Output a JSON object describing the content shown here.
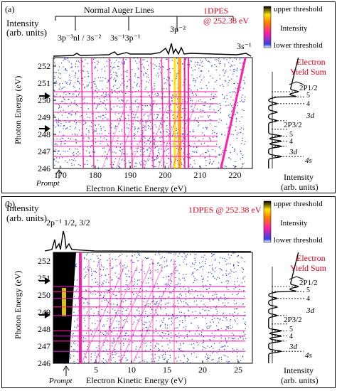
{
  "panel_a": {
    "label": "(a)",
    "intensity_label": [
      "Intensity",
      "(arb. units)"
    ],
    "auger_header": "Normal Auger Lines",
    "peak_labels": {
      "p3nl": "3p⁻³nl / 3s⁻²",
      "s1p1": "3s⁻¹3p⁻¹",
      "p2": "3p⁻²",
      "s1": "3s⁻¹"
    },
    "title": [
      "1DPES",
      "@ 252.38 eV"
    ],
    "legend": {
      "upper": "upper threshold",
      "middle": "Intensity",
      "lower": "lower threshold"
    },
    "ylabel": "Photon Energy (eV)",
    "xlabel": "Electron Kinetic Energy (eV)",
    "prompt": "Prompt",
    "yield_title": [
      "Electron",
      "Yield Sum"
    ],
    "yield_xlabel": [
      "Intensity",
      "(arb. units)"
    ],
    "yield_labels": {
      "p12": "2P1/2",
      "n5a": "5",
      "n4a": "4",
      "d3a": "3d",
      "p32": "2P3/2",
      "n5b": "5",
      "n4b": "4",
      "d3b": "3d",
      "s4": "4s"
    }
  },
  "panel_b": {
    "label": "(b)",
    "intensity_label": [
      "Intensity",
      "(arb. units)"
    ],
    "peak_label": "2p⁻¹ 1/2, 3/2",
    "title": "1DPES @ 252.38 eV",
    "legend": {
      "upper": "upper threshold",
      "middle": "Intensity",
      "lower": "lower threshold"
    },
    "ylabel": "Photon Energy (eV)",
    "xlabel": "Electron Kinetic Energy (eV)",
    "prompt": "Prompt",
    "yield_title": [
      "Electron",
      "Yield Sum"
    ],
    "yield_xlabel": [
      "Intensity",
      "(arb. units)"
    ],
    "yield_labels": {
      "p12": "2P1/2",
      "n5a": "5",
      "n4a": "4",
      "d3a": "3d",
      "p32": "2P3/2",
      "n5b": "5",
      "n4b": "4",
      "d3b": "3d",
      "s4": "4s"
    }
  },
  "chart_data": [
    {
      "type": "heatmap",
      "xlabel": "Electron Kinetic Energy (eV)",
      "ylabel": "Photon Energy (eV)",
      "xlim": [
        168,
        225
      ],
      "ylim": [
        246,
        252.5
      ],
      "xticks": [
        170,
        180,
        190,
        200,
        210,
        220
      ],
      "yticks": [
        246,
        247,
        248,
        249,
        250,
        251,
        252
      ],
      "auger_spectrum_peaks": [
        {
          "x": 176,
          "y": 0.15
        },
        {
          "x": 188,
          "y": 0.2
        },
        {
          "x": 192,
          "y": 0.22
        },
        {
          "x": 201.5,
          "y": 0.5
        },
        {
          "x": 203.5,
          "y": 0.9
        },
        {
          "x": 205,
          "y": 0.55
        },
        {
          "x": 206.5,
          "y": 0.35
        },
        {
          "x": 209,
          "y": 0.15
        },
        {
          "x": 222,
          "y": 0.1
        }
      ],
      "yield_peaks": [
        246.7,
        247.3,
        247.6,
        247.9,
        248.8,
        249.3,
        249.8,
        250.2,
        250.5
      ]
    },
    {
      "type": "heatmap",
      "xlabel": "Electron Kinetic Energy (eV)",
      "ylabel": "Photon Energy (eV)",
      "xlim": [
        -1,
        27
      ],
      "ylim": [
        246,
        252.5
      ],
      "xticks": [
        5,
        10,
        15,
        20,
        25
      ],
      "yticks": [
        246,
        247,
        248,
        249,
        250,
        251,
        252
      ],
      "yield_peaks": [
        246.7,
        247.3,
        247.6,
        247.9,
        248.8,
        249.3,
        249.8,
        250.2,
        250.5
      ]
    }
  ],
  "colors": {
    "red_text": "#e0001b",
    "blue_dots": "#2d3fd6",
    "magenta": "#ff1fa8",
    "yellow": "#ffe400"
  }
}
